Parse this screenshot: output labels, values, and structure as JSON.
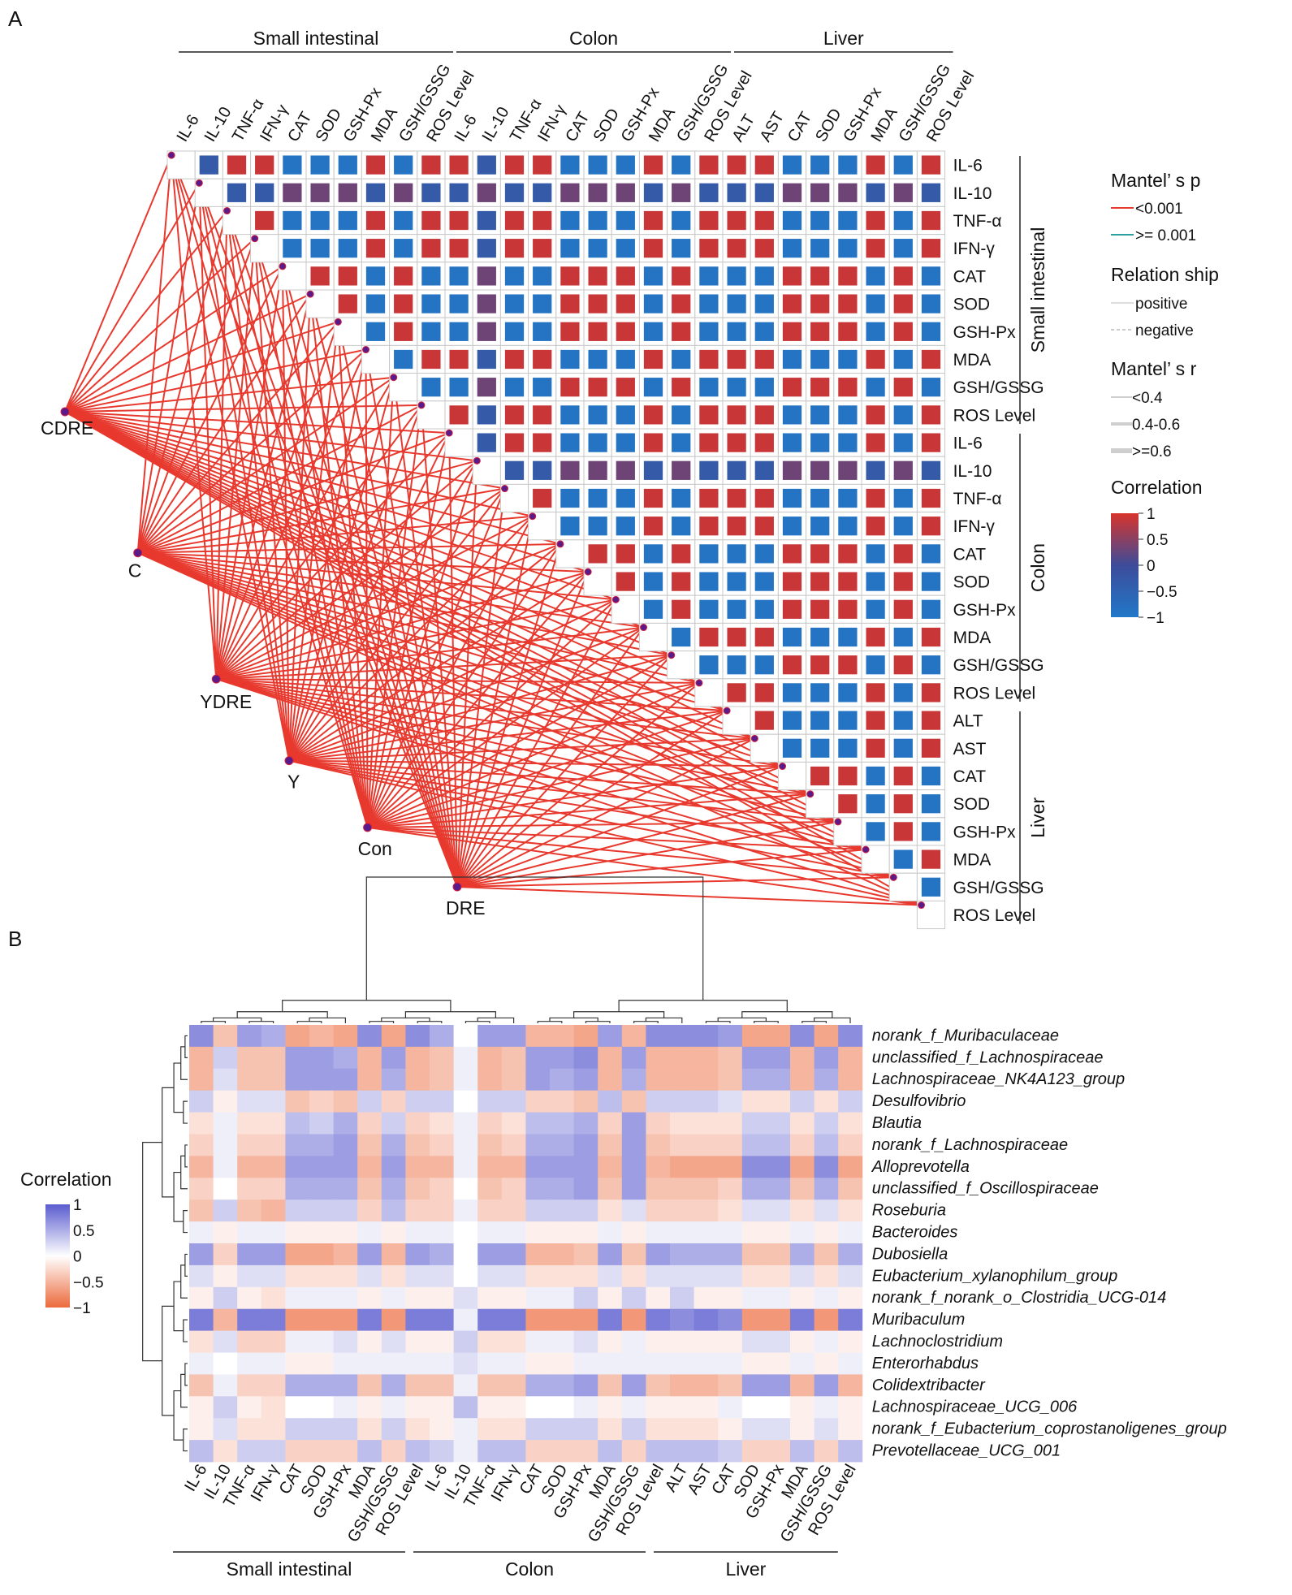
{
  "panel_labels": {
    "a": "A",
    "b": "B"
  },
  "colors": {
    "pos": "#d7342c",
    "neg": "#2178c8",
    "mid": "#3d4c9a",
    "mantel_sig": "#e8392e",
    "mantel_ns": "#2aa0a0",
    "b_pos": "#5a5ccf",
    "b_neg": "#ec6a3c",
    "node": "#5a1a8a"
  },
  "group_names": [
    "Small intestinal",
    "Colon",
    "Liver"
  ],
  "chart_data": [
    {
      "type": "heatmap",
      "name": "Mantel test correlation heatmap (panel A)",
      "variables": [
        {
          "label": "IL-6",
          "group": "Small intestinal"
        },
        {
          "label": "IL-10",
          "group": "Small intestinal"
        },
        {
          "label": "TNF-α",
          "group": "Small intestinal"
        },
        {
          "label": "IFN-γ",
          "group": "Small intestinal"
        },
        {
          "label": "CAT",
          "group": "Small intestinal"
        },
        {
          "label": "SOD",
          "group": "Small intestinal"
        },
        {
          "label": "GSH-Px",
          "group": "Small intestinal"
        },
        {
          "label": "MDA",
          "group": "Small intestinal"
        },
        {
          "label": "GSH/GSSG",
          "group": "Small intestinal"
        },
        {
          "label": "ROS Level",
          "group": "Small intestinal"
        },
        {
          "label": "IL-6",
          "group": "Colon"
        },
        {
          "label": "IL-10",
          "group": "Colon"
        },
        {
          "label": "TNF-α",
          "group": "Colon"
        },
        {
          "label": "IFN-γ",
          "group": "Colon"
        },
        {
          "label": "CAT",
          "group": "Colon"
        },
        {
          "label": "SOD",
          "group": "Colon"
        },
        {
          "label": "GSH-Px",
          "group": "Colon"
        },
        {
          "label": "MDA",
          "group": "Colon"
        },
        {
          "label": "GSH/GSSG",
          "group": "Colon"
        },
        {
          "label": "ROS Level",
          "group": "Colon"
        },
        {
          "label": "ALT",
          "group": "Liver"
        },
        {
          "label": "AST",
          "group": "Liver"
        },
        {
          "label": "CAT",
          "group": "Liver"
        },
        {
          "label": "SOD",
          "group": "Liver"
        },
        {
          "label": "GSH-Px",
          "group": "Liver"
        },
        {
          "label": "MDA",
          "group": "Liver"
        },
        {
          "label": "GSH/GSSG",
          "group": "Liver"
        },
        {
          "label": "ROS Level",
          "group": "Liver"
        }
      ],
      "value_profile": {
        "note": "Correlation sign estimated from colors; magnitudes near ±0.9",
        "anti_oxidant_like": [
          1,
          4,
          5,
          6,
          8,
          11,
          14,
          15,
          16,
          18,
          22,
          23,
          24,
          26
        ],
        "damage_like": [
          0,
          2,
          3,
          7,
          9,
          10,
          12,
          13,
          17,
          19,
          20,
          21,
          25,
          27
        ],
        "weak": [
          1,
          11
        ]
      },
      "samples": [
        "CDRE",
        "C",
        "YDRE",
        "Y",
        "Con",
        "DRE"
      ],
      "mantel": {
        "p": "all < 0.001",
        "r": ">=0.6"
      },
      "legend": {
        "mantel_p_title": "Mantel’ s p",
        "mantel_p_items": [
          "<0.001",
          ">= 0.001"
        ],
        "relation_title": "Relation ship",
        "relation_items": [
          "positive",
          "negative"
        ],
        "mantel_r_title": "Mantel’ s r",
        "mantel_r_items": [
          "<0.4",
          "0.4-0.6",
          ">=0.6"
        ],
        "corr_title": "Correlation",
        "corr_ticks": [
          "1",
          "0.5",
          "0",
          "−0.5",
          "−1"
        ]
      }
    },
    {
      "type": "heatmap",
      "name": "Genus-phenotype correlation heatmap (panel B)",
      "rows": [
        "norank_f_Muribaculaceae",
        "unclassified_f_Lachnospiraceae",
        "Lachnospiraceae_NK4A123_group",
        "Desulfovibrio",
        "Blautia",
        "norank_f_Lachnospiraceae",
        "Alloprevotella",
        "unclassified_f_Oscillospiraceae",
        "Roseburia",
        "Bacteroides",
        "Dubosiella",
        "Eubacterium_xylanophilum_group",
        "norank_f_norank_o_Clostridia_UCG-014",
        "Muribaculum",
        "Lachnoclostridium",
        "Enterorhabdus",
        "Colidextribacter",
        "Lachnospiraceae_UCG_006",
        "norank_f_Eubacterium_coprostanoligenes_group",
        "Prevotellaceae_UCG_001"
      ],
      "columns": [
        "IL-6",
        "IL-10",
        "TNF-α",
        "IFN-γ",
        "CAT",
        "SOD",
        "GSH-Px",
        "MDA",
        "GSH/GSSG",
        "ROS Level",
        "IL-6",
        "IL-10",
        "TNF-α",
        "IFN-γ",
        "CAT",
        "SOD",
        "GSH-Px",
        "MDA",
        "GSH/GSSG",
        "ROS Level",
        "ALT",
        "AST",
        "CAT",
        "SOD",
        "GSH-Px",
        "MDA",
        "GSH/GSSG",
        "ROS Level"
      ],
      "column_groups": [
        [
          "Small intestinal",
          0,
          9
        ],
        [
          "Colon",
          10,
          19
        ],
        [
          "Liver",
          20,
          27
        ]
      ],
      "values": [
        [
          0.7,
          -0.4,
          0.6,
          0.5,
          -0.6,
          -0.5,
          -0.6,
          0.7,
          -0.6,
          0.7,
          0.5,
          0.0,
          0.6,
          0.6,
          -0.5,
          -0.5,
          -0.6,
          0.6,
          -0.5,
          0.7,
          0.7,
          0.7,
          0.6,
          -0.6,
          -0.6,
          0.7,
          -0.6,
          0.7
        ],
        [
          -0.5,
          0.3,
          -0.4,
          -0.4,
          0.6,
          0.6,
          0.5,
          -0.5,
          0.6,
          -0.5,
          -0.4,
          0.1,
          -0.5,
          -0.4,
          0.6,
          0.6,
          0.7,
          -0.5,
          0.6,
          -0.5,
          -0.5,
          -0.5,
          -0.4,
          0.6,
          0.6,
          -0.5,
          0.6,
          -0.5
        ],
        [
          -0.5,
          0.2,
          -0.4,
          -0.4,
          0.6,
          0.6,
          0.6,
          -0.5,
          0.5,
          -0.5,
          -0.4,
          0.1,
          -0.5,
          -0.4,
          0.6,
          0.5,
          0.6,
          -0.5,
          0.5,
          -0.5,
          -0.5,
          -0.5,
          -0.4,
          0.5,
          0.5,
          -0.5,
          0.5,
          -0.5
        ],
        [
          0.3,
          -0.1,
          0.2,
          0.2,
          -0.4,
          -0.3,
          -0.4,
          0.3,
          -0.3,
          0.3,
          0.3,
          0.0,
          0.3,
          0.3,
          -0.3,
          -0.3,
          -0.4,
          0.4,
          -0.4,
          0.3,
          0.3,
          0.3,
          0.2,
          -0.2,
          -0.2,
          0.3,
          -0.2,
          0.3
        ],
        [
          -0.2,
          0.1,
          -0.2,
          -0.2,
          0.4,
          0.3,
          0.5,
          -0.3,
          0.3,
          -0.3,
          -0.2,
          0.1,
          -0.3,
          -0.2,
          0.4,
          0.4,
          0.5,
          -0.3,
          0.6,
          -0.3,
          -0.2,
          -0.2,
          -0.2,
          0.3,
          0.3,
          -0.2,
          0.3,
          -0.2
        ],
        [
          -0.3,
          0.1,
          -0.3,
          -0.3,
          0.5,
          0.5,
          0.6,
          -0.4,
          0.5,
          -0.4,
          -0.3,
          0.1,
          -0.4,
          -0.3,
          0.5,
          0.5,
          0.6,
          -0.4,
          0.6,
          -0.4,
          -0.3,
          -0.3,
          -0.3,
          0.4,
          0.4,
          -0.3,
          0.4,
          -0.3
        ],
        [
          -0.5,
          0.1,
          -0.5,
          -0.5,
          0.6,
          0.6,
          0.6,
          -0.5,
          0.6,
          -0.5,
          -0.5,
          0.1,
          -0.5,
          -0.5,
          0.6,
          0.6,
          0.6,
          -0.5,
          0.6,
          -0.5,
          -0.6,
          -0.6,
          -0.6,
          0.7,
          0.7,
          -0.6,
          0.7,
          -0.6
        ],
        [
          -0.3,
          0.0,
          -0.3,
          -0.3,
          0.5,
          0.5,
          0.5,
          -0.4,
          0.5,
          -0.4,
          -0.3,
          0.0,
          -0.4,
          -0.3,
          0.5,
          0.5,
          0.6,
          -0.4,
          0.6,
          -0.4,
          -0.4,
          -0.4,
          -0.3,
          0.5,
          0.5,
          -0.4,
          0.5,
          -0.4
        ],
        [
          -0.4,
          0.3,
          -0.4,
          -0.5,
          0.3,
          0.3,
          0.3,
          -0.3,
          0.4,
          -0.3,
          -0.3,
          0.1,
          -0.3,
          -0.3,
          0.3,
          0.3,
          0.3,
          -0.2,
          0.2,
          -0.3,
          -0.3,
          -0.3,
          -0.2,
          0.2,
          0.2,
          -0.2,
          0.2,
          -0.2
        ],
        [
          0.1,
          -0.1,
          0.1,
          0.1,
          -0.1,
          -0.1,
          -0.1,
          0.1,
          -0.1,
          0.1,
          0.1,
          0.0,
          0.1,
          0.1,
          -0.1,
          -0.1,
          -0.1,
          0.1,
          -0.1,
          0.1,
          0.1,
          0.1,
          0.1,
          -0.1,
          -0.1,
          0.1,
          -0.1,
          0.1
        ],
        [
          0.6,
          -0.3,
          0.6,
          0.6,
          -0.6,
          -0.6,
          -0.5,
          0.6,
          -0.5,
          0.6,
          0.5,
          0.0,
          0.6,
          0.6,
          -0.5,
          -0.5,
          -0.4,
          0.6,
          -0.4,
          0.6,
          0.5,
          0.5,
          0.5,
          -0.4,
          -0.4,
          0.5,
          -0.4,
          0.5
        ],
        [
          0.2,
          -0.1,
          0.2,
          0.2,
          -0.2,
          -0.2,
          -0.2,
          0.2,
          -0.2,
          0.2,
          0.2,
          0.0,
          0.2,
          0.2,
          -0.2,
          -0.2,
          -0.2,
          0.2,
          -0.2,
          0.2,
          0.2,
          0.2,
          0.2,
          -0.2,
          -0.2,
          0.2,
          -0.2,
          0.2
        ],
        [
          -0.1,
          0.3,
          -0.1,
          -0.2,
          0.1,
          0.1,
          0.1,
          -0.1,
          0.1,
          -0.1,
          -0.1,
          0.2,
          -0.1,
          -0.1,
          0.1,
          0.1,
          0.3,
          -0.1,
          0.3,
          -0.1,
          0.3,
          -0.1,
          -0.1,
          0.1,
          0.1,
          -0.1,
          0.1,
          -0.1
        ],
        [
          0.8,
          -0.5,
          0.8,
          0.8,
          -0.7,
          -0.7,
          -0.7,
          0.8,
          -0.7,
          0.8,
          0.8,
          0.1,
          0.8,
          0.8,
          -0.7,
          -0.7,
          -0.7,
          0.8,
          -0.7,
          0.8,
          0.7,
          0.8,
          0.7,
          -0.7,
          -0.7,
          0.8,
          -0.7,
          0.8
        ],
        [
          -0.2,
          0.2,
          -0.3,
          -0.3,
          0.1,
          0.1,
          0.2,
          -0.1,
          0.2,
          -0.1,
          -0.1,
          0.3,
          -0.2,
          -0.2,
          0.1,
          0.1,
          0.2,
          -0.1,
          0.1,
          -0.1,
          -0.1,
          -0.1,
          -0.1,
          0.2,
          0.2,
          -0.1,
          0.1,
          -0.1
        ],
        [
          0.1,
          0.0,
          0.1,
          0.1,
          -0.1,
          -0.1,
          0.1,
          0.1,
          0.1,
          0.1,
          0.1,
          0.2,
          0.1,
          0.1,
          -0.1,
          -0.1,
          0.1,
          0.1,
          0.1,
          0.1,
          0.1,
          0.1,
          0.1,
          -0.1,
          -0.1,
          0.1,
          -0.1,
          0.1
        ],
        [
          -0.4,
          0.1,
          -0.3,
          -0.3,
          0.5,
          0.5,
          0.5,
          -0.4,
          0.5,
          -0.4,
          -0.4,
          0.1,
          -0.4,
          -0.4,
          0.5,
          0.5,
          0.6,
          -0.4,
          0.6,
          -0.4,
          -0.5,
          -0.5,
          -0.4,
          0.6,
          0.6,
          -0.5,
          0.6,
          -0.5
        ],
        [
          -0.1,
          0.3,
          -0.1,
          -0.2,
          0.0,
          0.0,
          0.1,
          -0.1,
          0.1,
          -0.1,
          -0.1,
          0.4,
          -0.1,
          -0.1,
          0.0,
          0.0,
          0.1,
          -0.1,
          0.1,
          -0.1,
          -0.1,
          -0.1,
          0.1,
          0.0,
          0.0,
          -0.1,
          0.1,
          -0.1
        ],
        [
          -0.1,
          0.2,
          -0.2,
          -0.2,
          0.3,
          0.3,
          0.3,
          -0.2,
          0.3,
          -0.2,
          -0.1,
          0.1,
          -0.2,
          -0.2,
          0.3,
          0.3,
          0.3,
          -0.2,
          0.3,
          -0.2,
          -0.2,
          -0.2,
          -0.1,
          0.2,
          0.2,
          -0.1,
          0.2,
          -0.1
        ],
        [
          0.4,
          -0.2,
          0.3,
          0.3,
          -0.3,
          -0.3,
          -0.3,
          0.4,
          -0.3,
          0.4,
          0.3,
          0.1,
          0.4,
          0.4,
          -0.3,
          -0.3,
          -0.3,
          0.4,
          -0.3,
          0.4,
          0.4,
          0.4,
          0.3,
          -0.3,
          -0.3,
          0.4,
          -0.3,
          0.4
        ]
      ],
      "color_scale": {
        "title": "Correlation",
        "ticks": [
          "1",
          "0.5",
          "0",
          "−0.5",
          "−1"
        ]
      }
    }
  ]
}
